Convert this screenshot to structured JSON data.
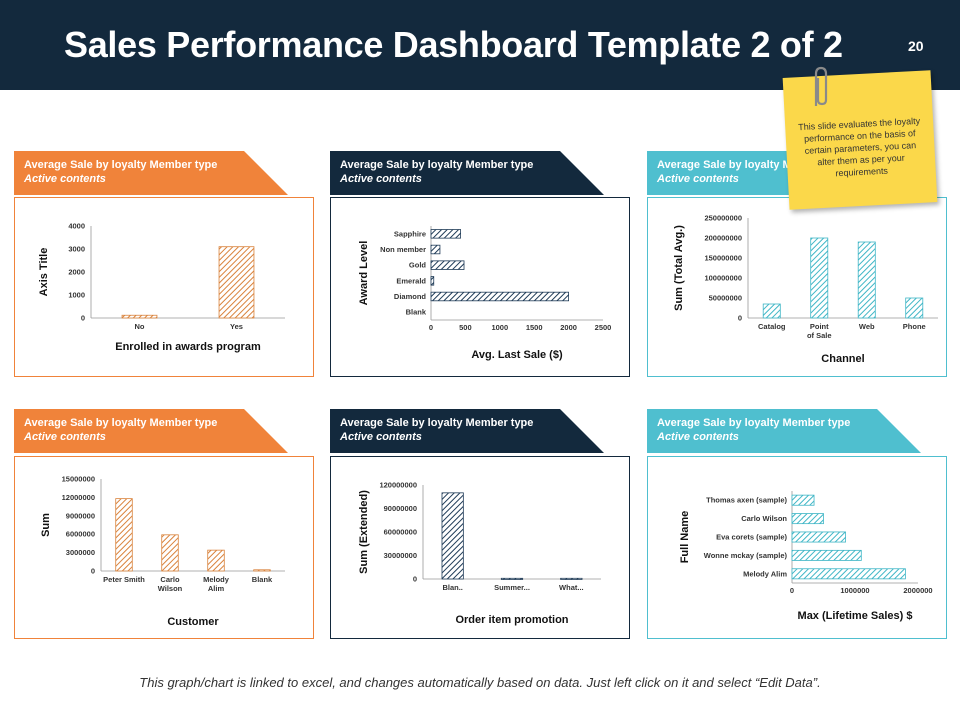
{
  "header": {
    "title": "Sales Performance Dashboard Template 2 of 2",
    "page_number": "20"
  },
  "sticky_note": {
    "text": "This slide evaluates the loyalty performance on the basis of certain parameters, you can alter them as per your requirements"
  },
  "footer": {
    "text": "This graph/chart is linked to excel, and changes automatically based on data. Just left click on it and select “Edit Data”."
  },
  "panels": [
    {
      "ribbon_title": "Average Sale by loyalty Member type",
      "ribbon_subtitle": "Active contents",
      "color": "#f0833a"
    },
    {
      "ribbon_title": "Average Sale by loyalty Member type",
      "ribbon_subtitle": "Active contents",
      "color": "#13293d"
    },
    {
      "ribbon_title": "Average Sale by loyalty Member type",
      "ribbon_subtitle": "Active contents",
      "color": "#4fbfcf"
    },
    {
      "ribbon_title": "Average Sale by loyalty Member type",
      "ribbon_subtitle": "Active contents",
      "color": "#f0833a"
    },
    {
      "ribbon_title": "Average Sale by loyalty Member type",
      "ribbon_subtitle": "Active contents",
      "color": "#13293d"
    },
    {
      "ribbon_title": "Average Sale by loyalty Member type",
      "ribbon_subtitle": "Active contents",
      "color": "#4fbfcf"
    }
  ],
  "chart_data": [
    {
      "type": "bar",
      "orientation": "vertical",
      "categories": [
        "No",
        "Yes"
      ],
      "values": [
        120,
        3100
      ],
      "ylim": [
        0,
        4000
      ],
      "yticks": [
        "0",
        "1000",
        "2000",
        "3000",
        "4000"
      ],
      "xlabel": "Enrolled in awards program",
      "ylabel": "Axis Title",
      "color": "#d9823b"
    },
    {
      "type": "bar",
      "orientation": "horizontal",
      "categories": [
        "Sapphire",
        "Non member",
        "Gold",
        "Emerald",
        "Diamond",
        "Blank"
      ],
      "values": [
        430,
        130,
        480,
        40,
        2000,
        0
      ],
      "xlim": [
        0,
        2500
      ],
      "xticks": [
        "0",
        "500",
        "1000",
        "1500",
        "2000",
        "2500"
      ],
      "xlabel": "Avg. Last Sale ($)",
      "ylabel": "Award Level",
      "color": "#1f3b57"
    },
    {
      "type": "bar",
      "orientation": "vertical",
      "categories": [
        "Catalog",
        "Point of Sale",
        "Web",
        "Phone"
      ],
      "values": [
        35000000,
        200000000,
        190000000,
        50000000
      ],
      "ylim": [
        0,
        250000000
      ],
      "yticks": [
        "0",
        "50000000",
        "100000000",
        "150000000",
        "200000000",
        "250000000"
      ],
      "xlabel": "Channel",
      "ylabel": "Sum (Total Avg.)",
      "color": "#3fb6c6"
    },
    {
      "type": "bar",
      "orientation": "vertical",
      "categories": [
        "Peter Smith",
        "Carlo Wilson",
        "Melody Alim",
        "Blank"
      ],
      "values": [
        11800000,
        5900000,
        3400000,
        200000
      ],
      "ylim": [
        0,
        15000000
      ],
      "yticks": [
        "0",
        "3000000",
        "6000000",
        "9000000",
        "12000000",
        "15000000"
      ],
      "xlabel": "Customer",
      "ylabel": "Sum",
      "color": "#d9823b"
    },
    {
      "type": "bar",
      "orientation": "vertical",
      "categories": [
        "Blan..",
        "Summer...",
        "What..."
      ],
      "values": [
        110000000,
        900000,
        900000
      ],
      "ylim": [
        0,
        120000000
      ],
      "yticks": [
        "0",
        "30000000",
        "60000000",
        "90000000",
        "120000000"
      ],
      "xlabel": "Order item promotion",
      "ylabel": "Sum (Extended)",
      "color": "#1f3b57"
    },
    {
      "type": "bar",
      "orientation": "horizontal",
      "categories": [
        "Thomas axen (sample)",
        "Carlo Wilson",
        "Eva corets (sample)",
        "Wonne mckay (sample)",
        "Melody Alim"
      ],
      "values": [
        350000,
        500000,
        850000,
        1100000,
        1800000
      ],
      "xlim": [
        0,
        2000000
      ],
      "xticks": [
        "0",
        "1000000",
        "2000000"
      ],
      "xlabel": "Max (Lifetime Sales) $",
      "ylabel": "Full Name",
      "color": "#3fb6c6"
    }
  ]
}
